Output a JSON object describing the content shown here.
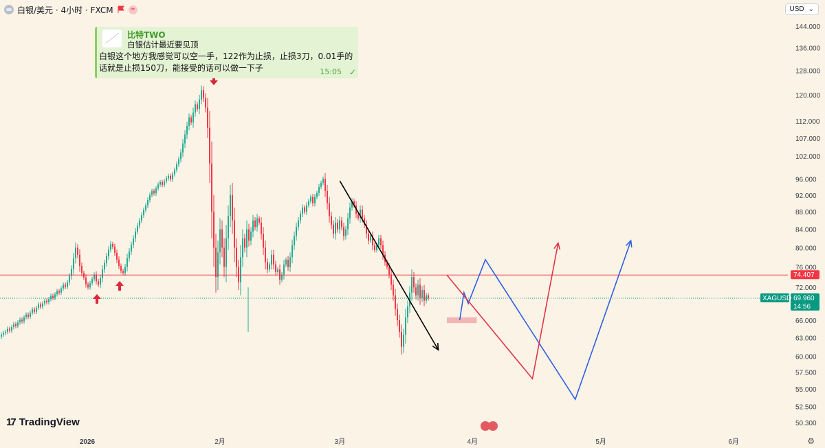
{
  "header": {
    "symbol_title": "白银/美元 · 4小时 · FXCM",
    "currency": "USD",
    "colors": {
      "background": "#fbf3e6",
      "up": "#22ab94",
      "down": "#f23645",
      "blue": "#2962ff"
    }
  },
  "note": {
    "author": "比特TWO",
    "quote": "白银估计最近要见顶",
    "body": "白银这个地方我感觉可以空一手，122作为止损，止损3刀，0.01手的话就是止损150刀，能接受的话可以做一下子",
    "time": "15:05"
  },
  "brand": {
    "name": "TradingView"
  },
  "chart_data": {
    "type": "candlestick",
    "instrument": "XAGUSD",
    "timeframe": "4小时",
    "y_ticks": [
      "144.000",
      "136.000",
      "128.000",
      "120.000",
      "112.000",
      "107.000",
      "102.000",
      "96.000",
      "92.000",
      "88.000",
      "84.000",
      "80.000",
      "76.000",
      "72.000",
      "66.000",
      "63.000",
      "60.000",
      "57.500",
      "55.000",
      "52.500",
      "50.300"
    ],
    "y_scale": "log",
    "x_ticks": [
      "2026",
      "2月",
      "3月",
      "4月",
      "5月",
      "6月"
    ],
    "price_line": {
      "value": 74.407,
      "label": "74.407",
      "color": "#f23645"
    },
    "current": {
      "symbol": "XAGUSD",
      "price": "69.960",
      "countdown": "14:56",
      "color": "#089981"
    },
    "ohlc_path_x": [
      0,
      3,
      6,
      9,
      12,
      15,
      18,
      21,
      24,
      27,
      30,
      33,
      36,
      39,
      42,
      45,
      48,
      51,
      54,
      57,
      60,
      63,
      66,
      69,
      72,
      75,
      78,
      81,
      84,
      87,
      90,
      93,
      96,
      99,
      102,
      105,
      108,
      111,
      114,
      117,
      120,
      123,
      126,
      129,
      132,
      135,
      138,
      141,
      144,
      147,
      150,
      153,
      156,
      159,
      162,
      165,
      168,
      171,
      174,
      177,
      180,
      183,
      186,
      189,
      192,
      195,
      198,
      201,
      204,
      207,
      210,
      213,
      216,
      219,
      222,
      225,
      228,
      231,
      234,
      237,
      240,
      243,
      246,
      249,
      252,
      255,
      258,
      261,
      264,
      267,
      270,
      273,
      276,
      279,
      282,
      285,
      288,
      291,
      294,
      297,
      300,
      303,
      306,
      309,
      312,
      315,
      318,
      321,
      324,
      327,
      330,
      333,
      336,
      339,
      342,
      345,
      348,
      351,
      354,
      357,
      360,
      363,
      366,
      369,
      372,
      375,
      378,
      381,
      384,
      387,
      390,
      393,
      396,
      399,
      402,
      405,
      408,
      411,
      414,
      417,
      420,
      423,
      426,
      429,
      432,
      435,
      438,
      441,
      444,
      447,
      450,
      453,
      456,
      459,
      462,
      465,
      468,
      471,
      474,
      477,
      480,
      483,
      486,
      489,
      492,
      495,
      498,
      501,
      504,
      507,
      510,
      513,
      516,
      519,
      522,
      525,
      528,
      531,
      534,
      537,
      540,
      543,
      546,
      549,
      552,
      555,
      558,
      561,
      564,
      567,
      570,
      573,
      576,
      579,
      582,
      585,
      588,
      591,
      594,
      597,
      600,
      603,
      606,
      609,
      612,
      615,
      618,
      621,
      624,
      627,
      630,
      633,
      636,
      639,
      642,
      645,
      648,
      651,
      654,
      657,
      660,
      663,
      666,
      669,
      672,
      675,
      678,
      681,
      684,
      687
    ],
    "close_series": [
      63.5,
      63.8,
      64.0,
      64.5,
      64.2,
      64.8,
      65.3,
      65.0,
      65.6,
      66.1,
      65.8,
      66.5,
      67.0,
      66.6,
      67.3,
      67.9,
      67.5,
      68.2,
      68.8,
      68.4,
      69.0,
      69.5,
      69.2,
      69.8,
      70.4,
      70.0,
      70.7,
      71.3,
      71.0,
      71.8,
      72.5,
      72.1,
      73.0,
      74.2,
      75.6,
      77.8,
      80.0,
      78.5,
      76.2,
      74.8,
      73.9,
      72.6,
      72.0,
      72.8,
      73.6,
      74.5,
      73.2,
      72.5,
      73.8,
      75.5,
      76.8,
      78.2,
      79.6,
      80.8,
      80.2,
      78.9,
      77.5,
      76.2,
      75.2,
      74.8,
      76.0,
      77.8,
      79.2,
      80.6,
      82.0,
      83.5,
      84.8,
      86.0,
      87.2,
      88.4,
      89.5,
      90.8,
      92.0,
      93.0,
      92.4,
      93.6,
      94.6,
      95.2,
      94.5,
      95.4,
      96.2,
      96.8,
      95.9,
      97.2,
      98.4,
      99.8,
      101.2,
      103.0,
      105.5,
      108.0,
      110.5,
      113.0,
      111.5,
      114.5,
      117.0,
      115.5,
      118.5,
      121.5,
      119.0,
      116.0,
      110.0,
      100.0,
      88.0,
      80.0,
      74.0,
      79.0,
      84.0,
      80.0,
      76.0,
      82.0,
      87.0,
      92.0,
      86.0,
      80.0,
      76.0,
      73.0,
      78.0,
      82.0,
      80.0,
      84.0,
      81.5,
      83.5,
      86.0,
      84.5,
      86.5,
      85.5,
      83.0,
      80.0,
      77.0,
      75.5,
      76.5,
      78.5,
      76.5,
      75.0,
      75.5,
      73.5,
      74.5,
      76.5,
      77.5,
      76.0,
      78.0,
      80.5,
      82.5,
      84.5,
      86.0,
      87.5,
      89.0,
      88.0,
      89.5,
      90.5,
      91.5,
      90.0,
      91.5,
      92.5,
      94.0,
      95.0,
      96.0,
      93.0,
      90.0,
      87.0,
      85.0,
      83.0,
      85.5,
      84.0,
      86.0,
      84.5,
      82.5,
      84.0,
      86.5,
      89.0,
      90.5,
      89.5,
      87.5,
      86.5,
      88.5,
      86.5,
      85.0,
      83.0,
      81.5,
      82.5,
      80.5,
      79.5,
      80.5,
      82.0,
      80.5,
      78.5,
      77.0,
      76.0,
      74.5,
      72.5,
      70.5,
      68.0,
      66.0,
      64.0,
      61.5,
      63.5,
      66.5,
      68.5,
      71.0,
      74.0,
      72.0,
      70.5,
      72.5,
      70.0,
      71.5,
      69.5,
      70.5,
      69.96
    ]
  },
  "projections": {
    "black": [
      {
        "date": "2026-03-01",
        "price": 95.5
      },
      {
        "date": "2026-03-24",
        "price": 61.0
      }
    ],
    "blue": [
      {
        "date": "2026-03-29",
        "price": 66.0
      },
      {
        "date": "2026-03-30",
        "price": 71.0
      },
      {
        "date": "2026-03-31",
        "price": 69.0
      },
      {
        "date": "2026-04-04",
        "price": 77.5
      },
      {
        "date": "2026-04-25",
        "price": 53.5
      },
      {
        "date": "2026-05-08",
        "price": 81.5
      }
    ],
    "red": [
      {
        "date": "2026-03-26",
        "price": 74.4
      },
      {
        "date": "2026-04-15",
        "price": 56.5
      },
      {
        "date": "2026-04-21",
        "price": 81.0
      }
    ],
    "zone": {
      "from": "2026-03-26",
      "to": "2026-04-02",
      "low": 65.5,
      "high": 66.5
    }
  }
}
